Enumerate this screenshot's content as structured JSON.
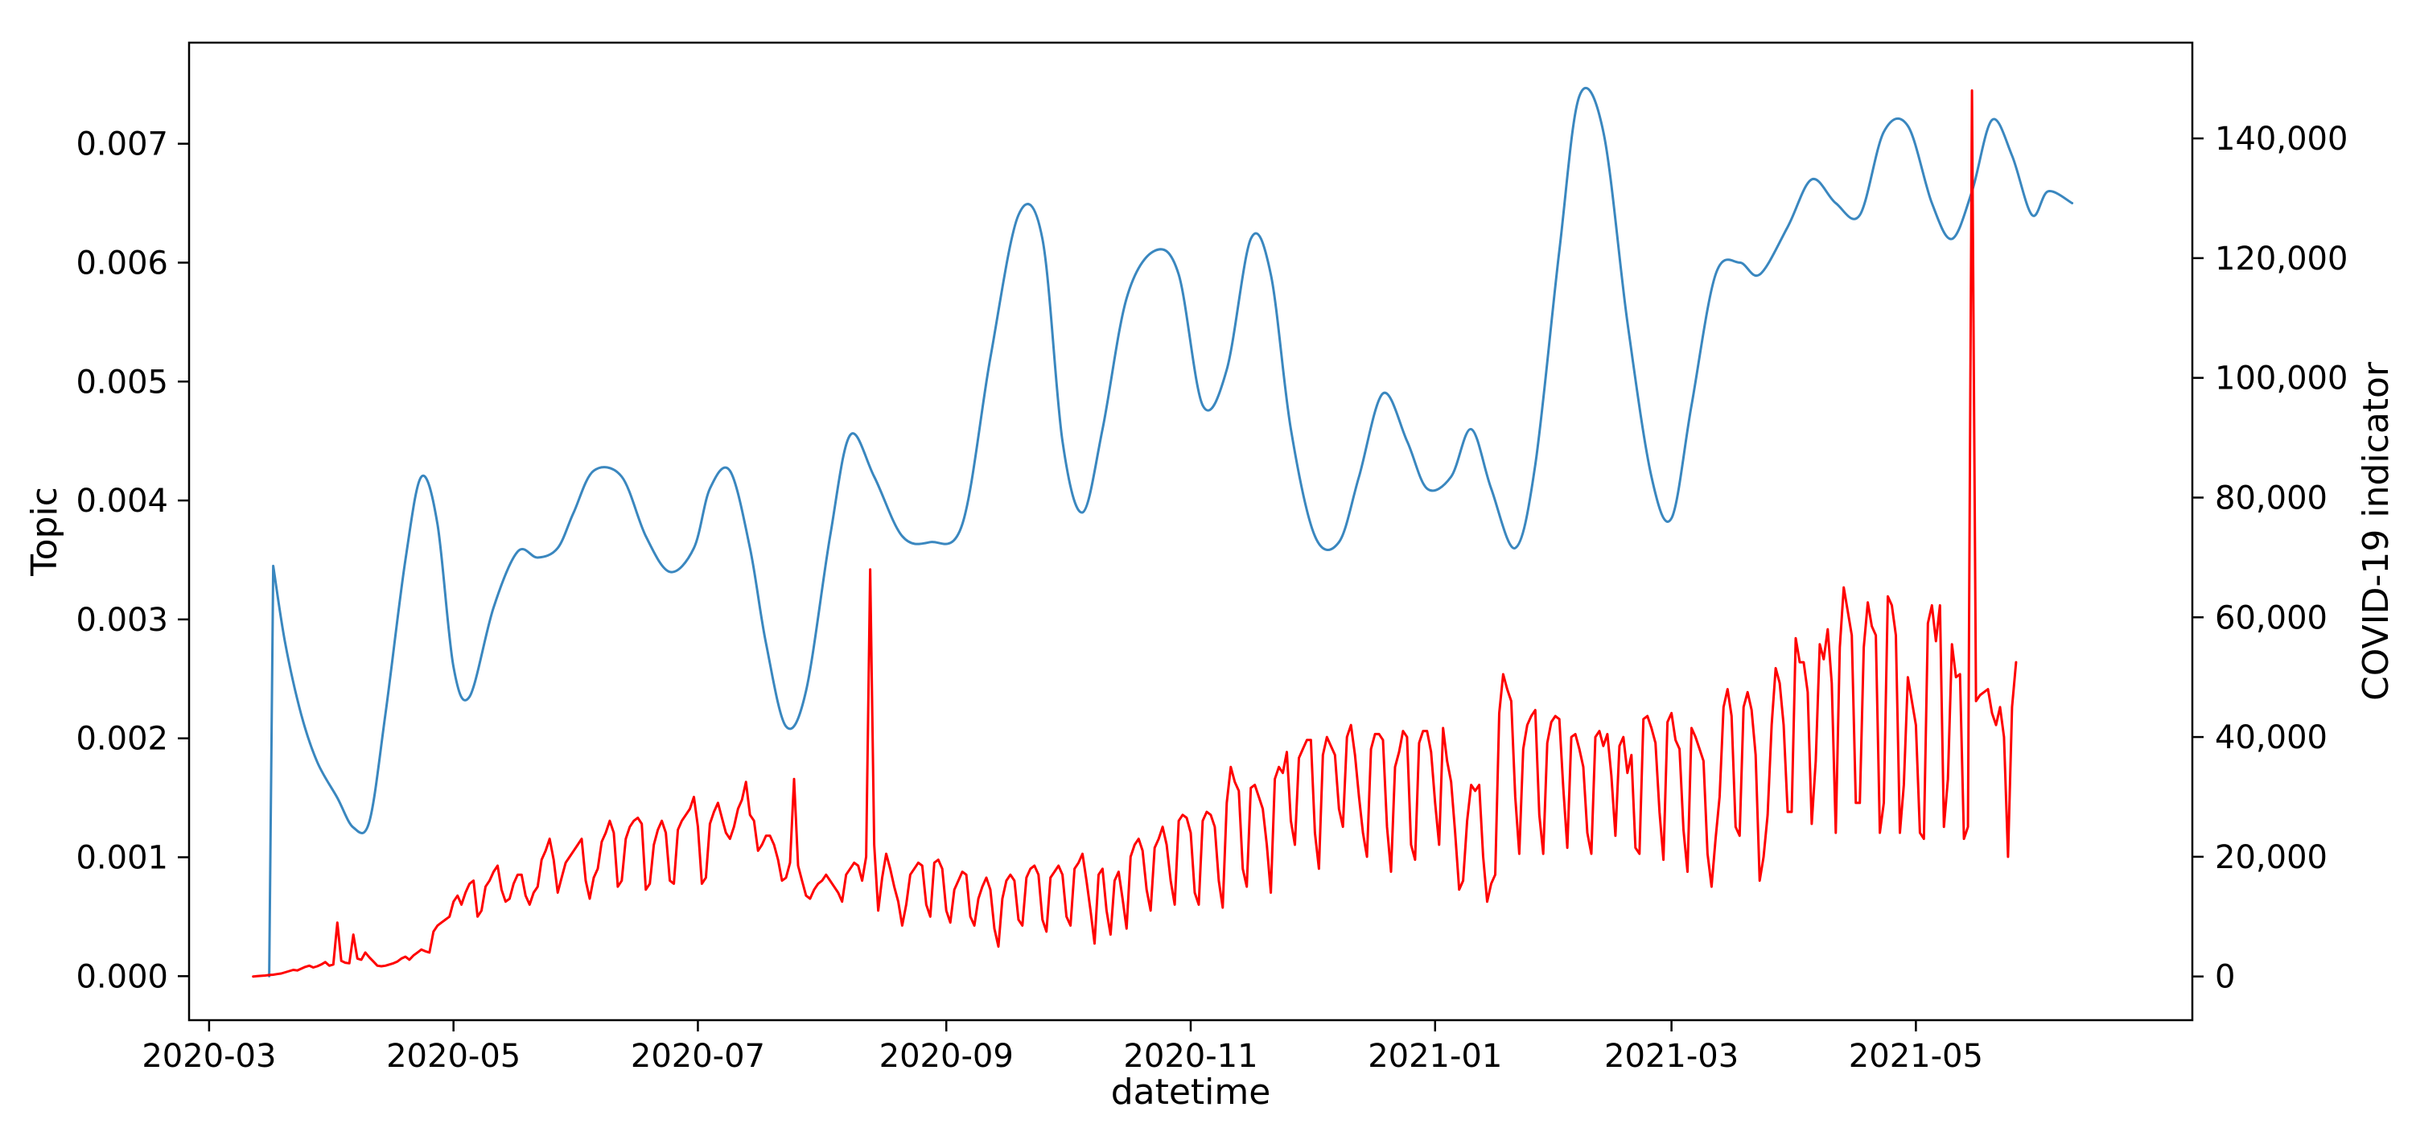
{
  "chart_data": {
    "type": "line",
    "title": "",
    "xlabel": "datetime",
    "ylabel": "Topic",
    "y2label": "COVID-19 indicator",
    "xlim": [
      "2020-02-25",
      "2021-07-09"
    ],
    "ylim": [
      -0.00037,
      0.00785
    ],
    "y2lim": [
      -7300,
      156000
    ],
    "grid": false,
    "legend": "none",
    "x_ticks": [
      {
        "date": "2020-03-01",
        "label": "2020-03"
      },
      {
        "date": "2020-05-01",
        "label": "2020-05"
      },
      {
        "date": "2020-07-01",
        "label": "2020-07"
      },
      {
        "date": "2020-09-01",
        "label": "2020-09"
      },
      {
        "date": "2020-11-01",
        "label": "2020-11"
      },
      {
        "date": "2021-01-01",
        "label": "2021-01"
      },
      {
        "date": "2021-03-01",
        "label": "2021-03"
      },
      {
        "date": "2021-05-01",
        "label": "2021-05"
      }
    ],
    "y_ticks": [
      {
        "value": 0.0,
        "label": "0.000"
      },
      {
        "value": 0.001,
        "label": "0.001"
      },
      {
        "value": 0.002,
        "label": "0.002"
      },
      {
        "value": 0.003,
        "label": "0.003"
      },
      {
        "value": 0.004,
        "label": "0.004"
      },
      {
        "value": 0.005,
        "label": "0.005"
      },
      {
        "value": 0.006,
        "label": "0.006"
      },
      {
        "value": 0.007,
        "label": "0.007"
      }
    ],
    "y2_ticks": [
      {
        "value": 0,
        "label": "0"
      },
      {
        "value": 20000,
        "label": "20,000"
      },
      {
        "value": 40000,
        "label": "40,000"
      },
      {
        "value": 60000,
        "label": "60,000"
      },
      {
        "value": 80000,
        "label": "80,000"
      },
      {
        "value": 100000,
        "label": "100,000"
      },
      {
        "value": 120000,
        "label": "120,000"
      },
      {
        "value": 140000,
        "label": "140,000"
      }
    ],
    "series": [
      {
        "axis": "left",
        "color": "#3a87bf",
        "smooth": true,
        "x": [
          "2020-03-16",
          "2020-03-17",
          "2020-03-20",
          "2020-03-24",
          "2020-03-28",
          "2020-04-02",
          "2020-04-06",
          "2020-04-10",
          "2020-04-14",
          "2020-04-19",
          "2020-04-23",
          "2020-04-27",
          "2020-05-01",
          "2020-05-05",
          "2020-05-11",
          "2020-05-17",
          "2020-05-22",
          "2020-05-27",
          "2020-05-31",
          "2020-06-05",
          "2020-06-12",
          "2020-06-18",
          "2020-06-24",
          "2020-06-30",
          "2020-07-04",
          "2020-07-09",
          "2020-07-14",
          "2020-07-18",
          "2020-07-23",
          "2020-07-28",
          "2020-08-03",
          "2020-08-08",
          "2020-08-14",
          "2020-08-21",
          "2020-08-28",
          "2020-09-05",
          "2020-09-12",
          "2020-09-19",
          "2020-09-25",
          "2020-09-30",
          "2020-10-05",
          "2020-10-10",
          "2020-10-16",
          "2020-10-23",
          "2020-10-29",
          "2020-11-04",
          "2020-11-10",
          "2020-11-16",
          "2020-11-21",
          "2020-11-26",
          "2020-12-02",
          "2020-12-08",
          "2020-12-13",
          "2020-12-19",
          "2020-12-25",
          "2020-12-30",
          "2021-01-05",
          "2021-01-10",
          "2021-01-15",
          "2021-01-21",
          "2021-01-26",
          "2021-02-01",
          "2021-02-06",
          "2021-02-12",
          "2021-02-18",
          "2021-02-24",
          "2021-03-01",
          "2021-03-06",
          "2021-03-12",
          "2021-03-18",
          "2021-03-23",
          "2021-03-30",
          "2021-04-05",
          "2021-04-11",
          "2021-04-17",
          "2021-04-23",
          "2021-04-29",
          "2021-05-05",
          "2021-05-10",
          "2021-05-15",
          "2021-05-20",
          "2021-05-25",
          "2021-05-30",
          "2021-06-03",
          "2021-06-09"
        ],
        "values": [
          0.0,
          0.00345,
          0.0028,
          0.0022,
          0.0018,
          0.0015,
          0.00125,
          0.0013,
          0.0022,
          0.0035,
          0.0042,
          0.0038,
          0.0026,
          0.00235,
          0.0031,
          0.00357,
          0.00352,
          0.0036,
          0.0039,
          0.00425,
          0.0042,
          0.0037,
          0.0034,
          0.0036,
          0.0041,
          0.00425,
          0.0036,
          0.0028,
          0.0021,
          0.0024,
          0.0037,
          0.00455,
          0.0042,
          0.0037,
          0.00365,
          0.0038,
          0.0052,
          0.0064,
          0.0062,
          0.0045,
          0.0039,
          0.0046,
          0.0057,
          0.0061,
          0.0059,
          0.0048,
          0.0051,
          0.0062,
          0.0059,
          0.0046,
          0.0037,
          0.00365,
          0.0042,
          0.0049,
          0.0045,
          0.0041,
          0.0042,
          0.0046,
          0.0041,
          0.0036,
          0.0043,
          0.0061,
          0.0074,
          0.0071,
          0.0055,
          0.0042,
          0.00385,
          0.0048,
          0.0059,
          0.006,
          0.0059,
          0.0063,
          0.0067,
          0.0065,
          0.0064,
          0.0071,
          0.00715,
          0.0065,
          0.0062,
          0.0066,
          0.0072,
          0.0069,
          0.0064,
          0.0066,
          0.0065
        ]
      },
      {
        "axis": "right",
        "color": "#ff0000",
        "smooth": false,
        "start": "2020-03-12",
        "values": [
          0,
          50,
          100,
          160,
          240,
          300,
          400,
          500,
          700,
          900,
          1100,
          1000,
          1300,
          1600,
          1800,
          1500,
          1700,
          2000,
          2400,
          1800,
          2000,
          9000,
          2600,
          2300,
          2200,
          7000,
          3000,
          2800,
          4000,
          3200,
          2500,
          1800,
          1700,
          1800,
          2000,
          2200,
          2500,
          3000,
          3300,
          2800,
          3500,
          4000,
          4500,
          4200,
          4000,
          7500,
          8500,
          9000,
          9500,
          10000,
          12500,
          13500,
          12000,
          14000,
          15500,
          16000,
          10000,
          11000,
          15000,
          16000,
          17500,
          18500,
          14500,
          12500,
          13000,
          15500,
          17000,
          17000,
          13500,
          12000,
          14000,
          15000,
          19500,
          21000,
          23000,
          19500,
          14000,
          16500,
          19000,
          20000,
          21000,
          22000,
          23000,
          16000,
          13000,
          16500,
          18000,
          22500,
          24000,
          26000,
          24000,
          15000,
          16000,
          23000,
          25000,
          26000,
          26500,
          25500,
          14500,
          15500,
          22000,
          24500,
          26000,
          24000,
          16000,
          15500,
          24500,
          26000,
          27000,
          28000,
          30000,
          25000,
          15500,
          16500,
          25500,
          27500,
          29000,
          26500,
          24000,
          23000,
          25000,
          28000,
          29500,
          32500,
          27000,
          26000,
          21000,
          22000,
          23500,
          23500,
          22000,
          19500,
          16000,
          16500,
          19000,
          33000,
          18500,
          16000,
          13500,
          13000,
          14500,
          15500,
          16000,
          17000,
          16000,
          15000,
          14000,
          12500,
          17000,
          18000,
          19000,
          18500,
          16000,
          20000,
          68000,
          22000,
          11000,
          16500,
          20500,
          18000,
          15000,
          12500,
          8500,
          12000,
          17000,
          18000,
          19000,
          18500,
          12000,
          10000,
          19000,
          19500,
          18000,
          11000,
          9000,
          14500,
          16000,
          17500,
          17000,
          10000,
          8500,
          13000,
          15000,
          16500,
          14500,
          8000,
          5000,
          13000,
          16000,
          17000,
          16000,
          9500,
          8500,
          16500,
          18000,
          18500,
          17000,
          9500,
          7500,
          16500,
          17500,
          18500,
          17000,
          10000,
          8500,
          18000,
          19000,
          20500,
          16000,
          11000,
          5500,
          17000,
          18000,
          11000,
          7000,
          16000,
          17500,
          13000,
          8000,
          20000,
          22000,
          23000,
          21000,
          14500,
          11000,
          21500,
          23000,
          25000,
          22000,
          16000,
          12000,
          26000,
          27000,
          26500,
          24000,
          14000,
          12000,
          26000,
          27500,
          27000,
          25000,
          16000,
          11500,
          29000,
          35000,
          32500,
          31000,
          18000,
          15000,
          31500,
          32000,
          30000,
          28000,
          22000,
          14000,
          33000,
          35000,
          34000,
          37500,
          26000,
          22000,
          36500,
          38000,
          39500,
          39500,
          24000,
          18000,
          37000,
          40000,
          38500,
          37000,
          28000,
          25000,
          40000,
          42000,
          37000,
          30000,
          24000,
          20000,
          38000,
          40500,
          40500,
          39500,
          25000,
          17500,
          35000,
          37500,
          41000,
          40000,
          22000,
          19500,
          39000,
          41000,
          41000,
          37500,
          29000,
          22000,
          41500,
          36000,
          32500,
          24000,
          14500,
          16000,
          26000,
          32000,
          31000,
          32000,
          20000,
          12500,
          15500,
          17000,
          44000,
          50500,
          48000,
          46000,
          30000,
          20500,
          38000,
          42000,
          43500,
          44500,
          27000,
          20500,
          39000,
          42500,
          43500,
          43000,
          31500,
          21500,
          40000,
          40500,
          38000,
          35000,
          24000,
          20500,
          40000,
          41000,
          38500,
          40500,
          33500,
          23500,
          38500,
          40000,
          34000,
          37000,
          21500,
          20500,
          43000,
          43500,
          41500,
          39000,
          27500,
          19500,
          42500,
          44000,
          39500,
          38000,
          24500,
          17500,
          41500,
          40000,
          38000,
          36000,
          20500,
          15000,
          23000,
          30000,
          45000,
          48000,
          43500,
          25000,
          23500,
          45000,
          47500,
          44500,
          37000,
          16000,
          20000,
          27000,
          42000,
          51500,
          49000,
          42000,
          27500,
          27500,
          56500,
          52500,
          52500,
          47500,
          25500,
          36000,
          55500,
          53000,
          58000,
          49000,
          24000,
          55000,
          65000,
          61000,
          57000,
          29000,
          29000,
          55000,
          62500,
          58500,
          57000,
          24000,
          29000,
          63500,
          62000,
          57000,
          24000,
          32000,
          50000,
          46000,
          42000,
          24000,
          23000,
          59000,
          62000,
          56000,
          62000,
          25000,
          33000,
          55500,
          50000,
          50500,
          23000,
          25000,
          148000,
          46000,
          47000,
          47500,
          48000,
          44000,
          42000,
          45000,
          40000,
          20000,
          45000,
          52500
        ]
      }
    ]
  }
}
